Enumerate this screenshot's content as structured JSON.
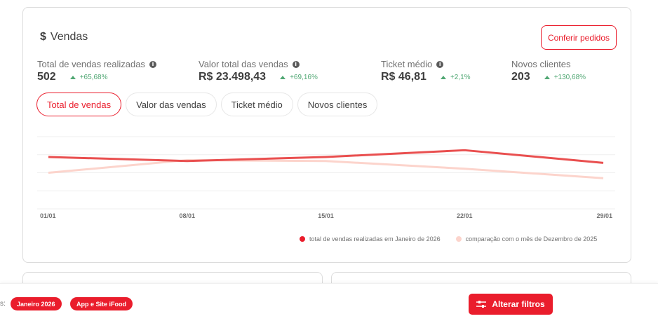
{
  "sales_card": {
    "title_icon": "dollar-icon",
    "title": "Vendas",
    "title_symbol": "$",
    "check_orders_button": "Conferir pedidos",
    "metrics": [
      {
        "label": "Total de vendas realizadas",
        "has_info": true,
        "value": "502",
        "delta": "+65,68%"
      },
      {
        "label": "Valor total das vendas",
        "has_info": true,
        "value": "R$ 23.498,43",
        "delta": "+69,16%"
      },
      {
        "label": "Ticket médio",
        "has_info": true,
        "value": "R$ 46,81",
        "delta": "+2,1%"
      },
      {
        "label": "Novos clientes",
        "has_info": false,
        "value": "203",
        "delta": "+130,68%"
      }
    ],
    "tabs": [
      {
        "label": "Total de vendas",
        "active": true
      },
      {
        "label": "Valor das vendas",
        "active": false
      },
      {
        "label": "Ticket médio",
        "active": false
      },
      {
        "label": "Novos clientes",
        "active": false
      }
    ],
    "legend": [
      {
        "label": "total de vendas realizadas em Janeiro de 2026",
        "color": "#ea1d2c"
      },
      {
        "label": "comparação com o mês de Dezembro de 2025",
        "color": "#fcd4cc"
      }
    ]
  },
  "chart_data": {
    "type": "line",
    "x": [
      "01/01",
      "08/01",
      "15/01",
      "22/01",
      "29/01"
    ],
    "series": [
      {
        "name": "total de vendas realizadas em Janeiro de 2026",
        "color": "#e94f4f",
        "values": [
          115,
          106,
          115,
          130,
          102
        ]
      },
      {
        "name": "comparação com o mês de Dezembro de 2025",
        "color": "#fcd4cc",
        "values": [
          80,
          108,
          106,
          89,
          68
        ]
      }
    ],
    "ylim": [
      0,
      160
    ],
    "grid": true,
    "legend_position": "bottom-right",
    "y_tick_labels_visible": false
  },
  "footer": {
    "filters_label": "s:",
    "chips": [
      "Janeiro 2026",
      "App e Site iFood"
    ],
    "change_filters_button": "Alterar filtros"
  },
  "colors": {
    "brand_red": "#ea1d2c",
    "positive_green": "#50a773",
    "line_primary": "#e94f4f",
    "line_comparison": "#fcd4cc"
  }
}
